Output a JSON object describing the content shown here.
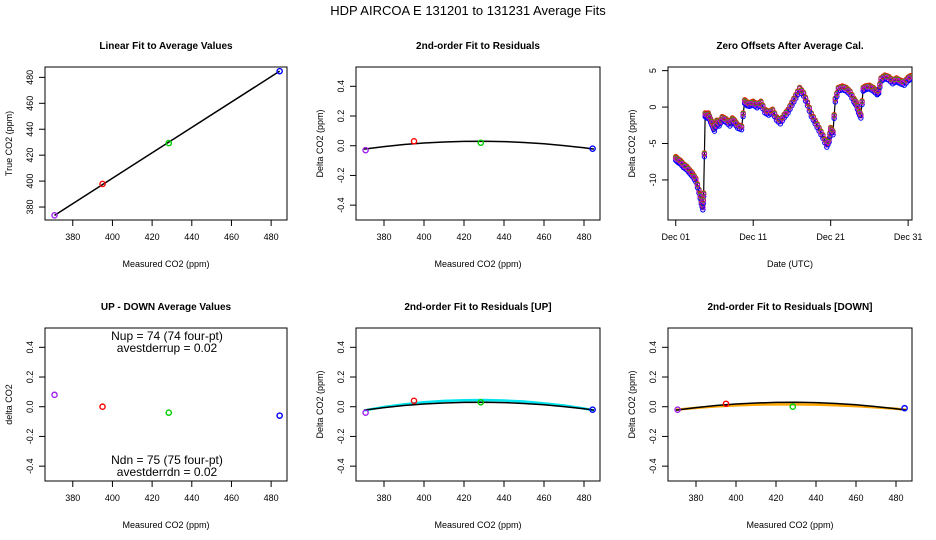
{
  "figure_title": "HDP    AIRCOA E   131201 to 131231   Average Fits",
  "chart_data": [
    {
      "id": "p1",
      "type": "scatter",
      "title": "Linear Fit to Average Values",
      "xlabel": "Measured CO2 (ppm)",
      "ylabel": "True CO2 (ppm)",
      "xlim": [
        366,
        488
      ],
      "ylim": [
        370,
        488
      ],
      "xticks": [
        380,
        400,
        420,
        440,
        460,
        480
      ],
      "yticks": [
        380,
        400,
        420,
        440,
        460,
        480
      ],
      "points": [
        {
          "x": 370.8,
          "y": 373.6,
          "color": "#a020f0"
        },
        {
          "x": 395.0,
          "y": 397.8,
          "color": "#ff0000"
        },
        {
          "x": 428.4,
          "y": 429.3,
          "color": "#00cc00"
        },
        {
          "x": 484.3,
          "y": 484.8,
          "color": "#0000ff"
        }
      ],
      "lines": [
        {
          "color": "#000000",
          "x": [
            370.8,
            484.3
          ],
          "y": [
            373.6,
            484.8
          ]
        }
      ]
    },
    {
      "id": "p2",
      "type": "scatter",
      "title": "2nd-order Fit to Residuals",
      "xlabel": "Measured CO2 (ppm)",
      "ylabel": "Delta CO2 (ppm)",
      "xlim": [
        366,
        488
      ],
      "ylim": [
        -0.5,
        0.53
      ],
      "xticks": [
        380,
        400,
        420,
        440,
        460,
        480
      ],
      "yticks": [
        -0.4,
        -0.2,
        0.0,
        0.2,
        0.4
      ],
      "ytick_labels": [
        "-0.4",
        "-0.2",
        "0.0",
        "0.2",
        "0.4"
      ],
      "points": [
        {
          "x": 370.8,
          "y": -0.03,
          "color": "#a020f0"
        },
        {
          "x": 395.0,
          "y": 0.03,
          "color": "#ff0000"
        },
        {
          "x": 428.4,
          "y": 0.02,
          "color": "#00cc00"
        },
        {
          "x": 484.3,
          "y": -0.02,
          "color": "#0000ff"
        }
      ],
      "lines": [
        {
          "color": "#000000",
          "x": [
            370,
            380,
            390,
            400,
            410,
            420,
            430,
            440,
            450,
            460,
            470,
            480,
            485
          ],
          "y": [
            -0.023,
            -0.006,
            0.008,
            0.018,
            0.025,
            0.029,
            0.03,
            0.028,
            0.022,
            0.013,
            0.001,
            -0.014,
            -0.023
          ]
        }
      ]
    },
    {
      "id": "p3",
      "type": "line",
      "title": "Zero Offsets After Average Cal.",
      "xlabel": "Date (UTC)",
      "ylabel": "Delta CO2 (ppm)",
      "xlim": [
        0,
        31.5
      ],
      "ylim": [
        -15.5,
        5.5
      ],
      "xticks": [
        1,
        11,
        21,
        31
      ],
      "xtick_labels": [
        "Dec 01",
        "Dec 11",
        "Dec 21",
        "Dec 31"
      ],
      "yticks": [
        -10,
        -5,
        0,
        5
      ],
      "ytick_labels": [
        "-10",
        "-5",
        "0",
        "5"
      ],
      "series": [
        {
          "name": "black",
          "color": "#000000",
          "offset": 0.0
        },
        {
          "name": "blue",
          "color": "#0000ff",
          "offset": -0.3
        },
        {
          "name": "red",
          "color": "#ff0000",
          "offset": 0.2
        },
        {
          "name": "green",
          "color": "#00cc00",
          "offset": 0.1
        },
        {
          "name": "purple",
          "color": "#cc00cc",
          "offset": 0.0
        }
      ],
      "base_x": [
        1.0,
        1.3,
        1.6,
        2.0,
        2.4,
        2.8,
        3.2,
        3.6,
        4.0,
        4.3,
        4.5,
        4.6,
        4.8,
        5.0,
        5.2,
        5.5,
        5.8,
        6.0,
        6.3,
        6.6,
        7.0,
        7.5,
        8.0,
        8.3,
        8.6,
        9.0,
        9.5,
        9.9,
        10.2,
        10.5,
        11.0,
        11.5,
        12.0,
        12.5,
        13.0,
        13.5,
        14.0,
        14.5,
        15.0,
        15.5,
        16.0,
        16.5,
        17.0,
        17.5,
        18.0,
        18.5,
        19.0,
        19.5,
        20.0,
        20.5,
        20.8,
        21.0,
        21.3,
        21.6,
        22.0,
        22.5,
        23.0,
        23.5,
        24.0,
        24.3,
        24.6,
        24.9,
        25.2,
        25.5,
        26.0,
        26.5,
        27.0,
        27.2,
        27.5,
        28.0,
        28.5,
        29.0,
        29.5,
        30.0,
        30.5,
        31.0,
        31.3
      ],
      "base_y": [
        -7.0,
        -7.3,
        -7.5,
        -8.0,
        -8.3,
        -8.8,
        -9.3,
        -10.0,
        -11.5,
        -13.0,
        -13.8,
        -12.0,
        -1.0,
        -1.2,
        -1.0,
        -1.8,
        -2.5,
        -3.0,
        -2.0,
        -2.3,
        -1.5,
        -1.8,
        -2.3,
        -1.7,
        -2.0,
        -2.6,
        -2.8,
        0.8,
        0.5,
        0.4,
        0.6,
        0.2,
        0.6,
        -0.5,
        -0.8,
        -0.5,
        -1.5,
        -2.0,
        -1.2,
        -0.5,
        0.5,
        1.5,
        2.5,
        1.8,
        0.5,
        -1.0,
        -2.0,
        -3.0,
        -4.0,
        -5.2,
        -4.5,
        -3.0,
        -3.5,
        1.0,
        2.5,
        2.7,
        2.5,
        2.0,
        1.0,
        0.5,
        -0.5,
        -1.2,
        2.5,
        2.7,
        2.8,
        2.5,
        2.0,
        2.2,
        3.8,
        4.2,
        4.0,
        3.5,
        3.8,
        3.5,
        3.3,
        3.9,
        4.1
      ],
      "mark_every": 1
    },
    {
      "id": "p4",
      "type": "scatter",
      "title": "UP - DOWN Average Values",
      "xlabel": "Measured CO2 (ppm)",
      "ylabel": "delta CO2",
      "xlim": [
        366,
        488
      ],
      "ylim": [
        -0.5,
        0.53
      ],
      "xticks": [
        380,
        400,
        420,
        440,
        460,
        480
      ],
      "yticks": [
        -0.4,
        -0.2,
        0.0,
        0.2,
        0.4
      ],
      "ytick_labels": [
        "-0.4",
        "-0.2",
        "0.0",
        "0.2",
        "0.4"
      ],
      "points": [
        {
          "x": 370.8,
          "y": 0.08,
          "color": "#a020f0"
        },
        {
          "x": 395.0,
          "y": 0.0,
          "color": "#ff0000"
        },
        {
          "x": 428.4,
          "y": -0.04,
          "color": "#00cc00"
        },
        {
          "x": 484.3,
          "y": -0.06,
          "color": "#0000ff"
        }
      ],
      "lines": [],
      "annotations": {
        "top_line1": "Nup = 74 (74 four-pt)",
        "top_line2": "avestderrup =  0.02",
        "bottom_line1": "Ndn = 75 (75 four-pt)",
        "bottom_line2": "avestderrdn =  0.02"
      }
    },
    {
      "id": "p5",
      "type": "scatter",
      "title": "2nd-order Fit to Residuals [UP]",
      "xlabel": "Measured CO2 (ppm)",
      "ylabel": "Delta CO2 (ppm)",
      "xlim": [
        366,
        488
      ],
      "ylim": [
        -0.5,
        0.53
      ],
      "xticks": [
        380,
        400,
        420,
        440,
        460,
        480
      ],
      "yticks": [
        -0.4,
        -0.2,
        0.0,
        0.2,
        0.4
      ],
      "ytick_labels": [
        "-0.4",
        "-0.2",
        "0.0",
        "0.2",
        "0.4"
      ],
      "points": [
        {
          "x": 370.8,
          "y": -0.04,
          "color": "#a020f0"
        },
        {
          "x": 395.0,
          "y": 0.04,
          "color": "#ff0000"
        },
        {
          "x": 428.4,
          "y": 0.03,
          "color": "#00cc00"
        },
        {
          "x": 484.3,
          "y": -0.02,
          "color": "#0000ff"
        }
      ],
      "lines": [
        {
          "color": "#00e5ee",
          "x": [
            370,
            380,
            390,
            400,
            410,
            420,
            430,
            440,
            450,
            460,
            470,
            480,
            485
          ],
          "y": [
            -0.025,
            -0.002,
            0.016,
            0.03,
            0.039,
            0.044,
            0.045,
            0.042,
            0.035,
            0.023,
            0.008,
            -0.012,
            -0.024
          ]
        },
        {
          "color": "#000000",
          "x": [
            370,
            380,
            390,
            400,
            410,
            420,
            430,
            440,
            450,
            460,
            470,
            480,
            485
          ],
          "y": [
            -0.023,
            -0.006,
            0.008,
            0.018,
            0.025,
            0.029,
            0.03,
            0.028,
            0.022,
            0.013,
            0.001,
            -0.014,
            -0.023
          ]
        }
      ]
    },
    {
      "id": "p6",
      "type": "scatter",
      "title": "2nd-order Fit to Residuals [DOWN]",
      "xlabel": "Measured CO2 (ppm)",
      "ylabel": "Delta CO2 (ppm)",
      "xlim": [
        366,
        488
      ],
      "ylim": [
        -0.5,
        0.53
      ],
      "xticks": [
        380,
        400,
        420,
        440,
        460,
        480
      ],
      "yticks": [
        -0.4,
        -0.2,
        0.0,
        0.2,
        0.4
      ],
      "ytick_labels": [
        "-0.4",
        "-0.2",
        "0.0",
        "0.2",
        "0.4"
      ],
      "points": [
        {
          "x": 370.8,
          "y": -0.02,
          "color": "#a020f0"
        },
        {
          "x": 395.0,
          "y": 0.02,
          "color": "#ff0000"
        },
        {
          "x": 428.4,
          "y": 0.0,
          "color": "#00cc00"
        },
        {
          "x": 484.3,
          "y": -0.01,
          "color": "#0000ff"
        }
      ],
      "lines": [
        {
          "color": "#ffa500",
          "x": [
            370,
            380,
            390,
            400,
            410,
            420,
            430,
            440,
            450,
            460,
            470,
            480,
            485
          ],
          "y": [
            -0.02,
            -0.008,
            0.002,
            0.009,
            0.014,
            0.016,
            0.016,
            0.014,
            0.01,
            0.004,
            -0.004,
            -0.014,
            -0.02
          ]
        },
        {
          "color": "#000000",
          "x": [
            370,
            380,
            390,
            400,
            410,
            420,
            430,
            440,
            450,
            460,
            470,
            480,
            485
          ],
          "y": [
            -0.023,
            -0.006,
            0.008,
            0.018,
            0.025,
            0.029,
            0.03,
            0.028,
            0.022,
            0.013,
            0.001,
            -0.014,
            -0.023
          ]
        }
      ]
    }
  ]
}
